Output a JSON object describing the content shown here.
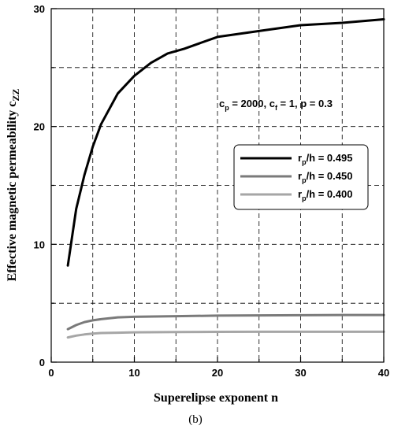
{
  "chart_data": {
    "type": "line",
    "xlabel": "Superelipse exponent n",
    "ylabel": "Effective magnetic permeability c",
    "ylabel_sub": "ZZ",
    "xlim": [
      0,
      40
    ],
    "ylim": [
      0,
      30
    ],
    "xticks": [
      "0",
      "10",
      "20",
      "30",
      "40"
    ],
    "yticks": [
      "0",
      "10",
      "20",
      "30"
    ],
    "grid": true,
    "legend_position": "right",
    "params_text": {
      "c": "c",
      "p_sub": "p",
      "eq1": " = 2000, c",
      "f_sub": "f",
      "rest": " = 1, p = 0.3"
    },
    "caption": "(b)",
    "colors": {
      "black": "#000000",
      "gray": "#7a7a7a",
      "lightgray": "#a6a6a6"
    },
    "series": [
      {
        "name": "r",
        "name_sub": "p",
        "name_rest": "/h = 0.495",
        "color": "#000000",
        "x": [
          2,
          3,
          4,
          5,
          6,
          8,
          10,
          12,
          14,
          16,
          20,
          25,
          30,
          35,
          40
        ],
        "y": [
          8.2,
          13.0,
          15.9,
          18.3,
          20.2,
          22.8,
          24.3,
          25.4,
          26.2,
          26.6,
          27.6,
          28.1,
          28.6,
          28.8,
          29.1
        ]
      },
      {
        "name": "r",
        "name_sub": "p",
        "name_rest": "/h = 0.450",
        "color": "#7a7a7a",
        "x": [
          2,
          3,
          4,
          5,
          6,
          8,
          10,
          15,
          20,
          25,
          30,
          35,
          40
        ],
        "y": [
          2.8,
          3.15,
          3.4,
          3.55,
          3.65,
          3.8,
          3.85,
          3.9,
          3.95,
          3.97,
          3.98,
          4.0,
          4.0
        ]
      },
      {
        "name": "r",
        "name_sub": "p",
        "name_rest": "/h = 0.400",
        "color": "#a6a6a6",
        "x": [
          2,
          3,
          4,
          5,
          6,
          8,
          10,
          15,
          20,
          25,
          30,
          35,
          40
        ],
        "y": [
          2.1,
          2.25,
          2.35,
          2.42,
          2.47,
          2.5,
          2.53,
          2.55,
          2.57,
          2.58,
          2.58,
          2.58,
          2.58
        ]
      }
    ]
  }
}
